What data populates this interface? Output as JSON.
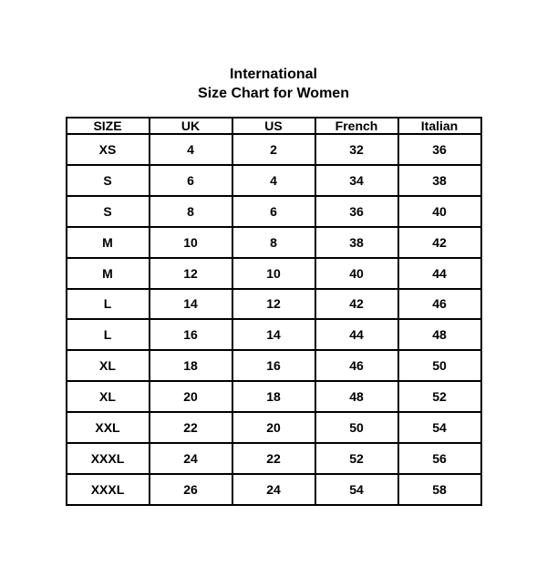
{
  "title": {
    "line1": "International",
    "line2": "Size Chart for Women"
  },
  "chart_data": {
    "type": "table",
    "title": "International Size Chart for Women",
    "columns": [
      "SIZE",
      "UK",
      "US",
      "French",
      "Italian"
    ],
    "rows": [
      [
        "XS",
        "4",
        "2",
        "32",
        "36"
      ],
      [
        "S",
        "6",
        "4",
        "34",
        "38"
      ],
      [
        "S",
        "8",
        "6",
        "36",
        "40"
      ],
      [
        "M",
        "10",
        "8",
        "38",
        "42"
      ],
      [
        "M",
        "12",
        "10",
        "40",
        "44"
      ],
      [
        "L",
        "14",
        "12",
        "42",
        "46"
      ],
      [
        "L",
        "16",
        "14",
        "44",
        "48"
      ],
      [
        "XL",
        "18",
        "16",
        "46",
        "50"
      ],
      [
        "XL",
        "20",
        "18",
        "48",
        "52"
      ],
      [
        "XXL",
        "22",
        "20",
        "50",
        "54"
      ],
      [
        "XXXL",
        "24",
        "22",
        "52",
        "56"
      ],
      [
        "XXXL",
        "26",
        "24",
        "54",
        "58"
      ]
    ],
    "colors": {
      "border": "#000000",
      "text": "#000000",
      "background": "#ffffff"
    }
  }
}
